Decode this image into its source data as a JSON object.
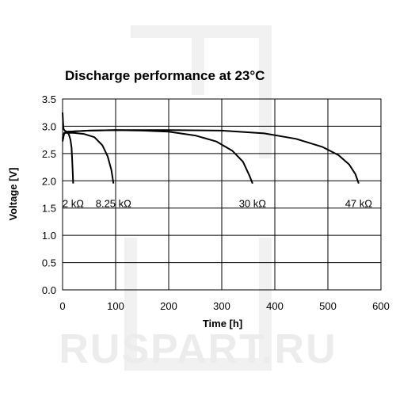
{
  "watermark": "RUSPART.RU",
  "chart_data": {
    "type": "line",
    "title": "Discharge performance at 23°C",
    "xlabel": "Time [h]",
    "ylabel": "Voltage [V]",
    "xlim": [
      0,
      600
    ],
    "ylim": [
      0.0,
      3.5
    ],
    "x_ticks": [
      "0",
      "100",
      "200",
      "300",
      "400",
      "500",
      "600"
    ],
    "y_ticks": [
      "0.0",
      "0.5",
      "1.0",
      "1.5",
      "2.0",
      "2.5",
      "3.0",
      "3.5"
    ],
    "grid": true,
    "line_color": "#000000",
    "series": [
      {
        "name": "2 kΩ",
        "points": [
          [
            0,
            3.25
          ],
          [
            1,
            3.05
          ],
          [
            2,
            2.95
          ],
          [
            4,
            2.92
          ],
          [
            8,
            2.9
          ],
          [
            12,
            2.85
          ],
          [
            15,
            2.75
          ],
          [
            17,
            2.6
          ],
          [
            18,
            2.4
          ],
          [
            19,
            2.2
          ],
          [
            20,
            1.95
          ]
        ]
      },
      {
        "name": "8.25 kΩ",
        "points": [
          [
            0,
            2.78
          ],
          [
            2,
            2.85
          ],
          [
            5,
            2.88
          ],
          [
            20,
            2.88
          ],
          [
            40,
            2.86
          ],
          [
            60,
            2.8
          ],
          [
            75,
            2.65
          ],
          [
            85,
            2.45
          ],
          [
            92,
            2.2
          ],
          [
            96,
            1.95
          ]
        ]
      },
      {
        "name": "30 kΩ",
        "points": [
          [
            0,
            2.75
          ],
          [
            3,
            2.88
          ],
          [
            10,
            2.9
          ],
          [
            50,
            2.92
          ],
          [
            100,
            2.93
          ],
          [
            150,
            2.92
          ],
          [
            200,
            2.9
          ],
          [
            250,
            2.83
          ],
          [
            290,
            2.72
          ],
          [
            320,
            2.55
          ],
          [
            340,
            2.35
          ],
          [
            352,
            2.1
          ],
          [
            358,
            1.95
          ]
        ]
      },
      {
        "name": "47 kΩ",
        "points": [
          [
            0,
            2.72
          ],
          [
            3,
            2.87
          ],
          [
            10,
            2.9
          ],
          [
            50,
            2.92
          ],
          [
            100,
            2.93
          ],
          [
            200,
            2.93
          ],
          [
            300,
            2.92
          ],
          [
            380,
            2.87
          ],
          [
            440,
            2.77
          ],
          [
            490,
            2.62
          ],
          [
            520,
            2.47
          ],
          [
            540,
            2.3
          ],
          [
            552,
            2.12
          ],
          [
            558,
            1.95
          ]
        ]
      }
    ]
  }
}
